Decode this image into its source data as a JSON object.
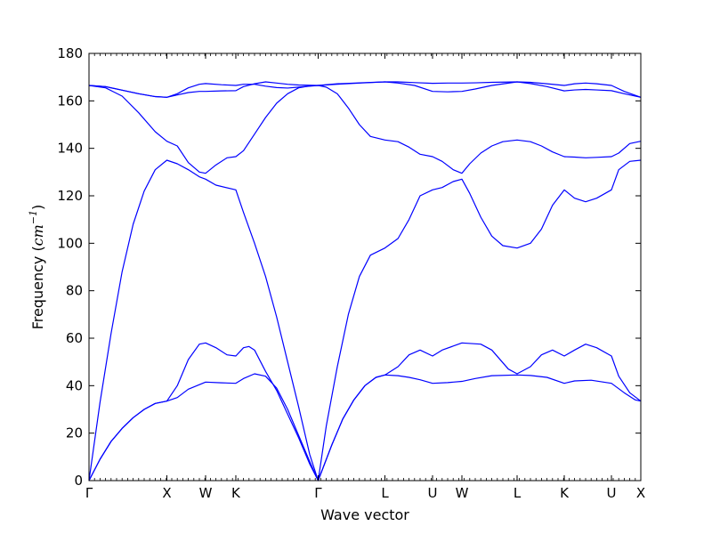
{
  "chart_data": {
    "type": "line",
    "title": "",
    "xlabel": "Wave vector",
    "ylabel_text": "Frequency (",
    "ylabel_unit": "cm",
    "ylabel_exp": "−1",
    "ylabel_close": ")",
    "ylim": [
      0,
      180
    ],
    "yticks": [
      0,
      20,
      40,
      60,
      80,
      100,
      120,
      140,
      160,
      180
    ],
    "line_color": "#0000ff",
    "grid": false,
    "xlim": [
      0,
      1
    ],
    "xticks": [
      {
        "pos": 0.0,
        "label": "Γ"
      },
      {
        "pos": 0.1411,
        "label": "X"
      },
      {
        "pos": 0.2113,
        "label": "W"
      },
      {
        "pos": 0.2661,
        "label": "K"
      },
      {
        "pos": 0.4153,
        "label": "Γ"
      },
      {
        "pos": 0.5363,
        "label": "L"
      },
      {
        "pos": 0.6226,
        "label": "U"
      },
      {
        "pos": 0.6758,
        "label": "W"
      },
      {
        "pos": 0.7758,
        "label": "L"
      },
      {
        "pos": 0.8613,
        "label": "K"
      },
      {
        "pos": 0.9468,
        "label": "U"
      },
      {
        "pos": 1.0,
        "label": "X"
      }
    ],
    "series": [
      {
        "points": [
          [
            0,
            0
          ],
          [
            0.02,
            9
          ],
          [
            0.04,
            16.5
          ],
          [
            0.06,
            22
          ],
          [
            0.08,
            26.5
          ],
          [
            0.1,
            30
          ],
          [
            0.12,
            32.5
          ],
          [
            0.1411,
            33.5
          ],
          [
            0.16,
            35
          ],
          [
            0.18,
            38.5
          ],
          [
            0.2113,
            41.5
          ],
          [
            0.24,
            41.2
          ],
          [
            0.2661,
            41
          ],
          [
            0.28,
            43
          ],
          [
            0.3,
            45
          ],
          [
            0.32,
            44
          ],
          [
            0.34,
            39
          ],
          [
            0.36,
            30
          ],
          [
            0.38,
            19
          ],
          [
            0.4,
            8
          ],
          [
            0.4153,
            0
          ],
          [
            0.44,
            15
          ],
          [
            0.46,
            26
          ],
          [
            0.48,
            34
          ],
          [
            0.5,
            40
          ],
          [
            0.52,
            43.5
          ],
          [
            0.5363,
            44.5
          ],
          [
            0.56,
            44.2
          ],
          [
            0.58,
            43.5
          ],
          [
            0.6,
            42.5
          ],
          [
            0.6226,
            41
          ],
          [
            0.65,
            41.3
          ],
          [
            0.6758,
            41.8
          ],
          [
            0.7,
            43
          ],
          [
            0.73,
            44.2
          ],
          [
            0.7758,
            44.5
          ],
          [
            0.8,
            44.3
          ],
          [
            0.83,
            43.5
          ],
          [
            0.8613,
            41
          ],
          [
            0.88,
            42
          ],
          [
            0.91,
            42.3
          ],
          [
            0.9468,
            41
          ],
          [
            0.97,
            37
          ],
          [
            0.99,
            34
          ],
          [
            1.0,
            33.5
          ]
        ]
      },
      {
        "points": [
          [
            0,
            0
          ],
          [
            0.02,
            9
          ],
          [
            0.04,
            16.5
          ],
          [
            0.06,
            22
          ],
          [
            0.08,
            26.5
          ],
          [
            0.1,
            30
          ],
          [
            0.12,
            32.5
          ],
          [
            0.1411,
            33.5
          ],
          [
            0.16,
            40
          ],
          [
            0.18,
            51
          ],
          [
            0.2,
            57.5
          ],
          [
            0.2113,
            58
          ],
          [
            0.23,
            56
          ],
          [
            0.25,
            53
          ],
          [
            0.2661,
            52.5
          ],
          [
            0.28,
            56
          ],
          [
            0.29,
            56.5
          ],
          [
            0.3,
            55
          ],
          [
            0.32,
            46
          ],
          [
            0.34,
            38
          ],
          [
            0.36,
            28
          ],
          [
            0.38,
            18
          ],
          [
            0.4,
            7
          ],
          [
            0.4153,
            0
          ],
          [
            0.44,
            15
          ],
          [
            0.46,
            26
          ],
          [
            0.48,
            34
          ],
          [
            0.5,
            40
          ],
          [
            0.52,
            43.5
          ],
          [
            0.5363,
            44.5
          ],
          [
            0.56,
            48
          ],
          [
            0.58,
            53
          ],
          [
            0.6,
            55
          ],
          [
            0.6226,
            52.5
          ],
          [
            0.64,
            55
          ],
          [
            0.6758,
            58
          ],
          [
            0.71,
            57.5
          ],
          [
            0.73,
            55
          ],
          [
            0.76,
            47
          ],
          [
            0.7758,
            45
          ],
          [
            0.8,
            48
          ],
          [
            0.82,
            53
          ],
          [
            0.84,
            55
          ],
          [
            0.8613,
            52.5
          ],
          [
            0.88,
            55
          ],
          [
            0.9,
            57.5
          ],
          [
            0.92,
            56
          ],
          [
            0.9468,
            52.5
          ],
          [
            0.96,
            44
          ],
          [
            0.98,
            37
          ],
          [
            1.0,
            33.5
          ]
        ]
      },
      {
        "points": [
          [
            0,
            0
          ],
          [
            0.02,
            33
          ],
          [
            0.04,
            62
          ],
          [
            0.06,
            88
          ],
          [
            0.08,
            108
          ],
          [
            0.1,
            122
          ],
          [
            0.12,
            131
          ],
          [
            0.1411,
            135
          ],
          [
            0.16,
            133.5
          ],
          [
            0.18,
            131
          ],
          [
            0.2,
            128
          ],
          [
            0.2113,
            127
          ],
          [
            0.23,
            124.5
          ],
          [
            0.2661,
            122.5
          ],
          [
            0.28,
            113
          ],
          [
            0.3,
            100
          ],
          [
            0.32,
            86
          ],
          [
            0.34,
            69
          ],
          [
            0.36,
            50
          ],
          [
            0.38,
            31
          ],
          [
            0.4,
            11
          ],
          [
            0.4153,
            0
          ],
          [
            0.43,
            23
          ],
          [
            0.45,
            48
          ],
          [
            0.47,
            70
          ],
          [
            0.49,
            86
          ],
          [
            0.51,
            95
          ],
          [
            0.5363,
            98
          ],
          [
            0.56,
            102
          ],
          [
            0.58,
            110
          ],
          [
            0.6,
            120
          ],
          [
            0.6226,
            122.5
          ],
          [
            0.64,
            123.5
          ],
          [
            0.66,
            126
          ],
          [
            0.6758,
            127
          ],
          [
            0.69,
            121
          ],
          [
            0.71,
            111
          ],
          [
            0.73,
            103
          ],
          [
            0.75,
            99
          ],
          [
            0.7758,
            98
          ],
          [
            0.8,
            100
          ],
          [
            0.82,
            106
          ],
          [
            0.84,
            116
          ],
          [
            0.8613,
            122.5
          ],
          [
            0.88,
            119
          ],
          [
            0.9,
            117.5
          ],
          [
            0.92,
            119
          ],
          [
            0.9468,
            122.5
          ],
          [
            0.96,
            131
          ],
          [
            0.98,
            134.5
          ],
          [
            1.0,
            135
          ]
        ]
      },
      {
        "points": [
          [
            0,
            166.5
          ],
          [
            0.03,
            165.5
          ],
          [
            0.06,
            162
          ],
          [
            0.09,
            155
          ],
          [
            0.12,
            147
          ],
          [
            0.1411,
            143
          ],
          [
            0.16,
            141
          ],
          [
            0.18,
            134
          ],
          [
            0.2,
            130
          ],
          [
            0.2113,
            129.5
          ],
          [
            0.23,
            133
          ],
          [
            0.25,
            136
          ],
          [
            0.2661,
            136.5
          ],
          [
            0.28,
            139
          ],
          [
            0.3,
            146
          ],
          [
            0.32,
            153
          ],
          [
            0.34,
            159
          ],
          [
            0.36,
            163
          ],
          [
            0.38,
            165.5
          ],
          [
            0.4,
            166.3
          ],
          [
            0.4153,
            166.5
          ],
          [
            0.43,
            165.8
          ],
          [
            0.45,
            163
          ],
          [
            0.47,
            157
          ],
          [
            0.49,
            150
          ],
          [
            0.51,
            145
          ],
          [
            0.5363,
            143.5
          ],
          [
            0.56,
            142.8
          ],
          [
            0.58,
            140.5
          ],
          [
            0.6,
            137.5
          ],
          [
            0.6226,
            136.5
          ],
          [
            0.64,
            134.5
          ],
          [
            0.66,
            131
          ],
          [
            0.6758,
            129.5
          ],
          [
            0.69,
            133.5
          ],
          [
            0.71,
            138
          ],
          [
            0.73,
            141
          ],
          [
            0.75,
            142.8
          ],
          [
            0.7758,
            143.5
          ],
          [
            0.8,
            142.8
          ],
          [
            0.82,
            141
          ],
          [
            0.84,
            138.5
          ],
          [
            0.8613,
            136.5
          ],
          [
            0.88,
            136.3
          ],
          [
            0.9,
            136
          ],
          [
            0.92,
            136.2
          ],
          [
            0.9468,
            136.5
          ],
          [
            0.96,
            138
          ],
          [
            0.98,
            142
          ],
          [
            1.0,
            143
          ]
        ]
      },
      {
        "points": [
          [
            0,
            166.5
          ],
          [
            0.03,
            166
          ],
          [
            0.06,
            164.5
          ],
          [
            0.09,
            163
          ],
          [
            0.12,
            161.8
          ],
          [
            0.1411,
            161.5
          ],
          [
            0.16,
            162.5
          ],
          [
            0.18,
            163.5
          ],
          [
            0.2,
            164
          ],
          [
            0.2113,
            164
          ],
          [
            0.24,
            164.2
          ],
          [
            0.2661,
            164.3
          ],
          [
            0.28,
            166
          ],
          [
            0.3,
            167.2
          ],
          [
            0.32,
            168
          ],
          [
            0.34,
            167.5
          ],
          [
            0.36,
            167
          ],
          [
            0.38,
            166.7
          ],
          [
            0.4153,
            166.5
          ],
          [
            0.45,
            167
          ],
          [
            0.5,
            167.6
          ],
          [
            0.5363,
            168
          ],
          [
            0.56,
            167.5
          ],
          [
            0.59,
            166.5
          ],
          [
            0.6226,
            164
          ],
          [
            0.65,
            163.8
          ],
          [
            0.6758,
            164
          ],
          [
            0.7,
            165
          ],
          [
            0.73,
            166.5
          ],
          [
            0.7758,
            168
          ],
          [
            0.8,
            167.3
          ],
          [
            0.83,
            166
          ],
          [
            0.8613,
            164.2
          ],
          [
            0.88,
            164.6
          ],
          [
            0.9,
            164.8
          ],
          [
            0.92,
            164.6
          ],
          [
            0.9468,
            164.3
          ],
          [
            0.97,
            163
          ],
          [
            1.0,
            161.5
          ]
        ]
      },
      {
        "points": [
          [
            0,
            166.5
          ],
          [
            0.03,
            166
          ],
          [
            0.06,
            164.5
          ],
          [
            0.09,
            163
          ],
          [
            0.12,
            161.8
          ],
          [
            0.1411,
            161.5
          ],
          [
            0.16,
            163
          ],
          [
            0.18,
            165.5
          ],
          [
            0.2,
            167
          ],
          [
            0.2113,
            167.3
          ],
          [
            0.24,
            166.8
          ],
          [
            0.2661,
            166.5
          ],
          [
            0.28,
            167
          ],
          [
            0.3,
            167
          ],
          [
            0.32,
            166.2
          ],
          [
            0.34,
            165.6
          ],
          [
            0.36,
            165.4
          ],
          [
            0.38,
            165.8
          ],
          [
            0.4153,
            166.5
          ],
          [
            0.45,
            167.2
          ],
          [
            0.5,
            167.7
          ],
          [
            0.5363,
            168
          ],
          [
            0.56,
            168
          ],
          [
            0.59,
            167.7
          ],
          [
            0.6226,
            167.4
          ],
          [
            0.65,
            167.5
          ],
          [
            0.6758,
            167.5
          ],
          [
            0.7,
            167.6
          ],
          [
            0.73,
            167.8
          ],
          [
            0.7758,
            168
          ],
          [
            0.8,
            167.8
          ],
          [
            0.83,
            167.2
          ],
          [
            0.8613,
            166.5
          ],
          [
            0.88,
            167.2
          ],
          [
            0.9,
            167.5
          ],
          [
            0.92,
            167.2
          ],
          [
            0.9468,
            166.5
          ],
          [
            0.97,
            164
          ],
          [
            1.0,
            161.5
          ]
        ]
      }
    ]
  }
}
